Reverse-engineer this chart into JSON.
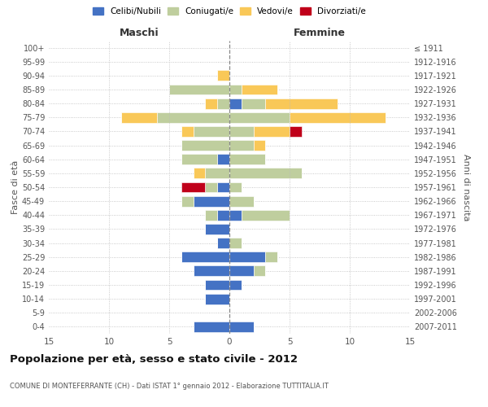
{
  "age_groups": [
    "0-4",
    "5-9",
    "10-14",
    "15-19",
    "20-24",
    "25-29",
    "30-34",
    "35-39",
    "40-44",
    "45-49",
    "50-54",
    "55-59",
    "60-64",
    "65-69",
    "70-74",
    "75-79",
    "80-84",
    "85-89",
    "90-94",
    "95-99",
    "100+"
  ],
  "birth_years": [
    "2007-2011",
    "2002-2006",
    "1997-2001",
    "1992-1996",
    "1987-1991",
    "1982-1986",
    "1977-1981",
    "1972-1976",
    "1967-1971",
    "1962-1966",
    "1957-1961",
    "1952-1956",
    "1947-1951",
    "1942-1946",
    "1937-1941",
    "1932-1936",
    "1927-1931",
    "1922-1926",
    "1917-1921",
    "1912-1916",
    "≤ 1911"
  ],
  "males": {
    "celibi": [
      3,
      0,
      2,
      2,
      3,
      4,
      1,
      2,
      1,
      3,
      1,
      0,
      1,
      0,
      0,
      0,
      0,
      0,
      0,
      0,
      0
    ],
    "coniugati": [
      0,
      0,
      0,
      0,
      0,
      0,
      0,
      0,
      1,
      1,
      1,
      2,
      3,
      4,
      3,
      6,
      1,
      5,
      0,
      0,
      0
    ],
    "vedovi": [
      0,
      0,
      0,
      0,
      0,
      0,
      0,
      0,
      0,
      0,
      0,
      1,
      0,
      0,
      1,
      3,
      1,
      0,
      1,
      0,
      0
    ],
    "divorziati": [
      0,
      0,
      0,
      0,
      0,
      0,
      0,
      0,
      0,
      0,
      2,
      0,
      0,
      0,
      0,
      0,
      0,
      0,
      0,
      0,
      0
    ]
  },
  "females": {
    "nubili": [
      2,
      0,
      0,
      1,
      2,
      3,
      0,
      0,
      1,
      0,
      0,
      0,
      0,
      0,
      0,
      0,
      1,
      0,
      0,
      0,
      0
    ],
    "coniugate": [
      0,
      0,
      0,
      0,
      1,
      1,
      1,
      0,
      4,
      2,
      1,
      6,
      3,
      2,
      2,
      5,
      2,
      1,
      0,
      0,
      0
    ],
    "vedove": [
      0,
      0,
      0,
      0,
      0,
      0,
      0,
      0,
      0,
      0,
      0,
      0,
      0,
      1,
      3,
      8,
      6,
      3,
      0,
      0,
      0
    ],
    "divorziate": [
      0,
      0,
      0,
      0,
      0,
      0,
      0,
      0,
      0,
      0,
      0,
      0,
      0,
      0,
      1,
      0,
      0,
      0,
      0,
      0,
      0
    ]
  },
  "colors": {
    "celibi_nubili": "#4472C4",
    "coniugati": "#BFCE9E",
    "vedovi": "#F9C858",
    "divorziati": "#C0001A"
  },
  "xlim": 15,
  "title": "Popolazione per età, sesso e stato civile - 2012",
  "subtitle": "COMUNE DI MONTEFERRANTE (CH) - Dati ISTAT 1° gennaio 2012 - Elaborazione TUTTITALIA.IT",
  "xlabel_left": "Maschi",
  "xlabel_right": "Femmine",
  "ylabel_left": "Fasce di età",
  "ylabel_right": "Anni di nascita",
  "legend_labels": [
    "Celibi/Nubili",
    "Coniugati/e",
    "Vedovi/e",
    "Divorziati/e"
  ],
  "background_color": "#ffffff",
  "bar_height": 0.75
}
